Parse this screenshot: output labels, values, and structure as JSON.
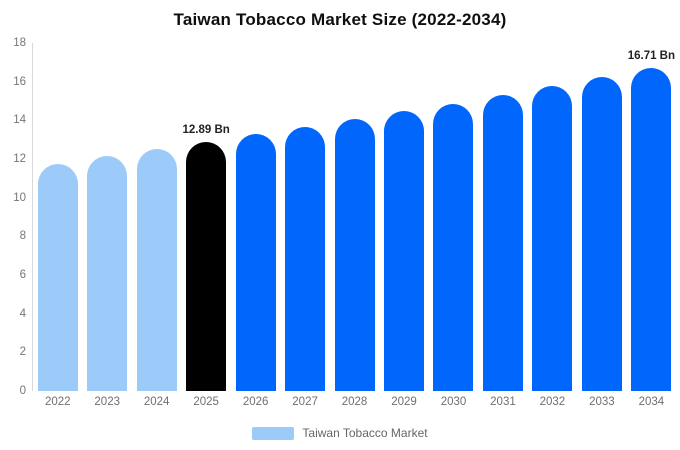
{
  "chart_data": {
    "type": "bar",
    "title": "Taiwan Tobacco Market Size (2022-2034)",
    "categories": [
      "2022",
      "2023",
      "2024",
      "2025",
      "2026",
      "2027",
      "2028",
      "2029",
      "2030",
      "2031",
      "2032",
      "2033",
      "2034"
    ],
    "series": [
      {
        "name": "Taiwan Tobacco Market",
        "values": [
          11.75,
          12.15,
          12.53,
          12.89,
          13.28,
          13.67,
          14.07,
          14.46,
          14.85,
          15.32,
          15.78,
          16.22,
          16.71
        ]
      }
    ],
    "bar_colors": [
      "#9CCBFA",
      "#9CCBFA",
      "#9CCBFA",
      "#000000",
      "#0066FC",
      "#0066FC",
      "#0066FC",
      "#0066FC",
      "#0066FC",
      "#0066FC",
      "#0066FC",
      "#0066FC",
      "#0066FC"
    ],
    "annotations": [
      {
        "category": "2025",
        "index": 3,
        "text": "12.89 Bn"
      },
      {
        "category": "2034",
        "index": 12,
        "text": "16.71 Bn"
      }
    ],
    "xlabel": "",
    "ylabel": "",
    "ylim": [
      0,
      18
    ],
    "yticks": [
      0,
      2,
      4,
      6,
      8,
      10,
      12,
      14,
      16,
      18
    ],
    "grid": false,
    "legend": {
      "position": "bottom",
      "items": [
        {
          "label": "Taiwan Tobacco Market",
          "color": "#9CCBFA"
        }
      ]
    },
    "colors": {
      "highlight_bar": "#000000",
      "past_bars": "#9CCBFA",
      "forecast_bars": "#0066FC",
      "axis_line": "#d9d9d9",
      "tick_text": "#757575",
      "value_label_text": "#222222",
      "title_text": "#0f0f0f"
    }
  }
}
